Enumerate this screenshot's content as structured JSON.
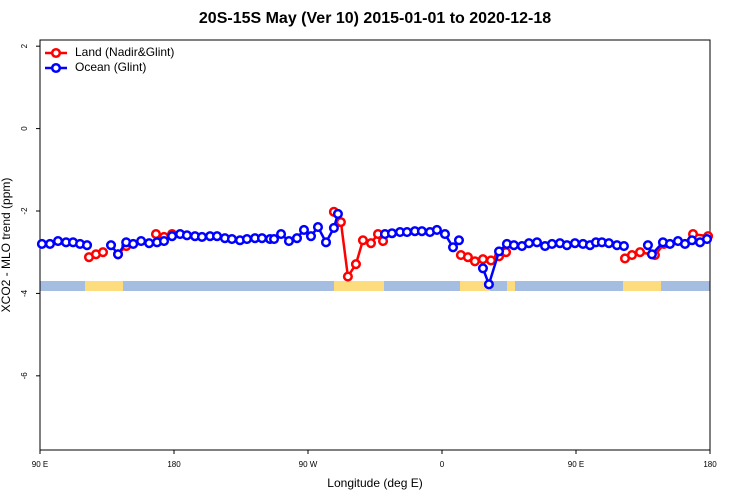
{
  "chart_data": {
    "type": "line",
    "title": "20S-15S May (Ver 10)   2015-01-01 to 2020-12-18",
    "xlabel": "Longitude (deg E)",
    "ylabel": "XCO2 - MLO trend (ppm)",
    "xlim": [
      90,
      540
    ],
    "ylim": [
      -7.8,
      2.15
    ],
    "xticks": [
      {
        "value": 90,
        "label": "90 E"
      },
      180,
      {
        "value": 270,
        "label": "90 W"
      },
      {
        "value": 360,
        "label": "0"
      },
      {
        "value": 450,
        "label": "90 E"
      },
      {
        "value": 540,
        "label": "180"
      }
    ],
    "yticks": [
      -6,
      -4,
      -2,
      0,
      2
    ],
    "legend": "top-left",
    "series": [
      {
        "name": "Land (Nadir&Glint)",
        "color": "#ff0000",
        "x": [
          122.9,
          127.6,
          132.3,
          null,
          142.4,
          147.9,
          null,
          167.9,
          173.3,
          178.7,
          null,
          287.4,
          292.1,
          296.8,
          302.2,
          306.9,
          312.3,
          317.0,
          320.4,
          null,
          372.7,
          377.4,
          382.1,
          387.5,
          392.9,
          398.3,
          403.0,
          null,
          482.9,
          487.6,
          493.0,
          503.0,
          509.1,
          null,
          528.6,
          538.7
        ],
        "values": [
          -3.12,
          -3.05,
          -3.0,
          null,
          -3.05,
          -2.85,
          null,
          -2.56,
          -2.63,
          -2.56,
          null,
          -2.02,
          -2.27,
          -3.59,
          -3.29,
          -2.71,
          -2.78,
          -2.56,
          -2.73,
          null,
          -3.07,
          -3.12,
          -3.22,
          -3.17,
          -3.2,
          -3.1,
          -3.0,
          null,
          -3.15,
          -3.07,
          -3.0,
          -3.07,
          -2.8,
          null,
          -2.56,
          -2.61
        ]
      },
      {
        "name": "Ocean (Glint)",
        "color": "#0000ff",
        "x": [
          91.3,
          96.7,
          102.1,
          107.5,
          112.2,
          116.9,
          121.6,
          null,
          137.7,
          142.4,
          147.9,
          152.6,
          157.9,
          163.3,
          168.6,
          173.3,
          178.7,
          184.1,
          188.7,
          194.1,
          198.8,
          204.2,
          208.9,
          214.2,
          218.9,
          224.3,
          229.0,
          234.4,
          239.1,
          244.5,
          247.2,
          251.9,
          257.2,
          262.6,
          267.3,
          272.0,
          276.7,
          282.1,
          287.4,
          290.1,
          null,
          321.7,
          326.4,
          331.8,
          336.5,
          341.8,
          346.5,
          351.9,
          356.6,
          362.0,
          367.4,
          371.4,
          null,
          387.5,
          391.5,
          398.3,
          403.6,
          408.3,
          413.7,
          418.4,
          423.8,
          429.2,
          433.9,
          439.2,
          443.9,
          449.3,
          454.7,
          459.4,
          463.4,
          467.4,
          472.1,
          477.5,
          482.2,
          null,
          498.3,
          501.0,
          508.4,
          513.1,
          518.5,
          523.2,
          527.9,
          533.3,
          538.0
        ],
        "values": [
          -2.8,
          -2.8,
          -2.73,
          -2.76,
          -2.76,
          -2.8,
          -2.83,
          null,
          -2.83,
          -3.05,
          -2.76,
          -2.8,
          -2.73,
          -2.78,
          -2.76,
          -2.73,
          -2.61,
          -2.56,
          -2.59,
          -2.61,
          -2.63,
          -2.61,
          -2.61,
          -2.66,
          -2.68,
          -2.71,
          -2.68,
          -2.66,
          -2.66,
          -2.68,
          -2.68,
          -2.56,
          -2.73,
          -2.66,
          -2.46,
          -2.61,
          -2.39,
          -2.76,
          -2.41,
          -2.07,
          null,
          -2.56,
          -2.54,
          -2.51,
          -2.51,
          -2.49,
          -2.49,
          -2.51,
          -2.46,
          -2.56,
          -2.88,
          -2.71,
          null,
          -3.39,
          -3.78,
          -2.98,
          -2.8,
          -2.83,
          -2.85,
          -2.78,
          -2.76,
          -2.85,
          -2.8,
          -2.78,
          -2.83,
          -2.78,
          -2.8,
          -2.83,
          -2.76,
          -2.76,
          -2.78,
          -2.83,
          -2.85,
          null,
          -2.83,
          -3.05,
          -2.76,
          -2.8,
          -2.73,
          -2.8,
          -2.71,
          -2.76,
          -2.68
        ]
      }
    ]
  }
}
